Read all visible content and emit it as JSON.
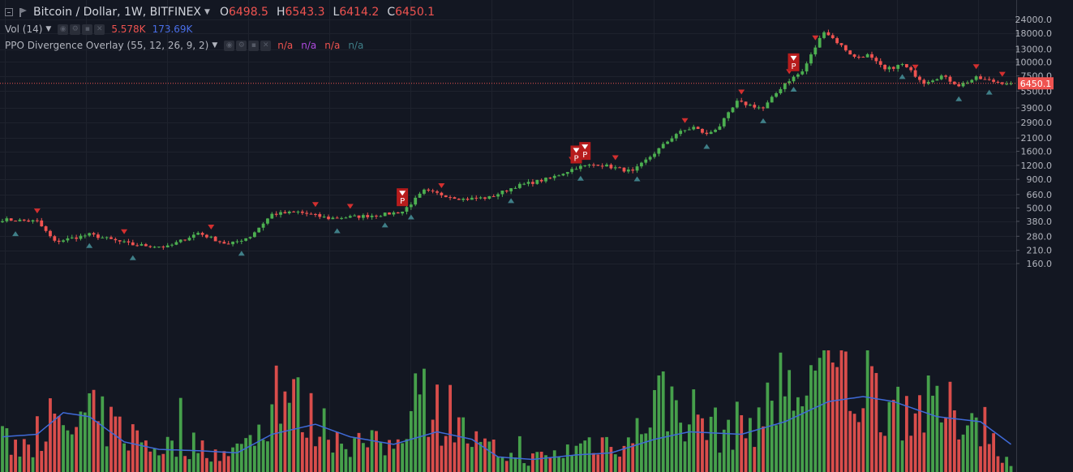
{
  "symbol": {
    "title": "Bitcoin / Dollar, 1W, BITFINEX",
    "open_label": "O",
    "open": "6498.5",
    "high_label": "H",
    "high": "6543.3",
    "low_label": "L",
    "low": "6414.2",
    "close_label": "C",
    "close": "6450.1"
  },
  "volume_legend": {
    "label": "Vol (14)",
    "value": "5.578K",
    "ma_value": "173.69K"
  },
  "ppo_legend": {
    "label": "PPO Divergence Overlay (55, 12, 26, 9, 2)",
    "values": [
      "n/a",
      "n/a",
      "n/a",
      "n/a"
    ]
  },
  "current_price_tag": "6450.1",
  "signal_marker_letter": "P",
  "colors": {
    "bg": "#131722",
    "up": "#4caf50",
    "down": "#ef5350",
    "ma": "#3f6ad8",
    "signal_up": "#3f7f88",
    "signal_down": "#d32f2f"
  },
  "chart_data": {
    "type": "candlestick",
    "y_scale": "log",
    "ylim": [
      146,
      25000
    ],
    "y_ticks": [
      24000,
      18000,
      13000,
      10000,
      7500,
      5500,
      3900,
      2900,
      2100,
      1600,
      1200,
      900,
      660,
      500,
      380,
      280,
      210,
      160
    ],
    "y_tick_labels": [
      "24000.0",
      "18000.0",
      "13000.0",
      "10000.0",
      "7500.0",
      "5500.0",
      "3900.0",
      "2900.0",
      "2100.0",
      "1600.0",
      "1200.0",
      "900.0",
      "660.0",
      "500.0",
      "380.0",
      "280.0",
      "210.0",
      "160.0"
    ],
    "last_close": 6450.1,
    "grid": true,
    "price_waypoints": [
      [
        0,
        395
      ],
      [
        8,
        380
      ],
      [
        12,
        250
      ],
      [
        20,
        290
      ],
      [
        30,
        235
      ],
      [
        38,
        225
      ],
      [
        45,
        300
      ],
      [
        52,
        235
      ],
      [
        57,
        280
      ],
      [
        62,
        440
      ],
      [
        68,
        460
      ],
      [
        75,
        405
      ],
      [
        82,
        420
      ],
      [
        88,
        440
      ],
      [
        92,
        465
      ],
      [
        97,
        710
      ],
      [
        106,
        600
      ],
      [
        112,
        620
      ],
      [
        118,
        780
      ],
      [
        126,
        920
      ],
      [
        132,
        1150
      ],
      [
        137,
        1230
      ],
      [
        145,
        1050
      ],
      [
        150,
        1550
      ],
      [
        155,
        2300
      ],
      [
        159,
        2620
      ],
      [
        162,
        2250
      ],
      [
        165,
        2700
      ],
      [
        169,
        4400
      ],
      [
        175,
        3850
      ],
      [
        180,
        6500
      ],
      [
        184,
        8200
      ],
      [
        189,
        19000
      ],
      [
        196,
        11000
      ],
      [
        199,
        11500
      ],
      [
        203,
        8500
      ],
      [
        207,
        9500
      ],
      [
        212,
        6600
      ],
      [
        216,
        7500
      ],
      [
        220,
        6200
      ],
      [
        224,
        7200
      ],
      [
        228,
        6700
      ],
      [
        232,
        6450
      ]
    ],
    "volume_profile": [
      [
        0,
        60
      ],
      [
        7,
        55
      ],
      [
        10,
        110
      ],
      [
        14,
        70
      ],
      [
        20,
        110
      ],
      [
        28,
        80
      ],
      [
        35,
        50
      ],
      [
        45,
        55
      ],
      [
        52,
        30
      ],
      [
        60,
        90
      ],
      [
        63,
        180
      ],
      [
        70,
        110
      ],
      [
        80,
        60
      ],
      [
        90,
        50
      ],
      [
        95,
        170
      ],
      [
        100,
        120
      ],
      [
        110,
        50
      ],
      [
        120,
        25
      ],
      [
        128,
        35
      ],
      [
        135,
        60
      ],
      [
        145,
        60
      ],
      [
        150,
        150
      ],
      [
        158,
        120
      ],
      [
        165,
        80
      ],
      [
        172,
        100
      ],
      [
        180,
        140
      ],
      [
        188,
        200
      ],
      [
        195,
        170
      ],
      [
        205,
        140
      ],
      [
        215,
        120
      ],
      [
        225,
        110
      ],
      [
        232,
        10
      ]
    ],
    "volume_ma_profile": [
      [
        0,
        70
      ],
      [
        8,
        75
      ],
      [
        14,
        118
      ],
      [
        20,
        110
      ],
      [
        28,
        60
      ],
      [
        36,
        45
      ],
      [
        46,
        42
      ],
      [
        54,
        38
      ],
      [
        62,
        75
      ],
      [
        72,
        95
      ],
      [
        80,
        70
      ],
      [
        90,
        55
      ],
      [
        100,
        80
      ],
      [
        108,
        65
      ],
      [
        114,
        30
      ],
      [
        122,
        25
      ],
      [
        132,
        34
      ],
      [
        140,
        38
      ],
      [
        150,
        65
      ],
      [
        158,
        80
      ],
      [
        170,
        75
      ],
      [
        180,
        100
      ],
      [
        190,
        140
      ],
      [
        198,
        150
      ],
      [
        205,
        140
      ],
      [
        215,
        110
      ],
      [
        225,
        100
      ],
      [
        232,
        55
      ]
    ],
    "signals_down": [
      8,
      28,
      48,
      72,
      80,
      92,
      101,
      131,
      141,
      157,
      170,
      181,
      187,
      210,
      224,
      230
    ],
    "signals_up": [
      3,
      20,
      30,
      55,
      77,
      88,
      94,
      117,
      133,
      146,
      162,
      175,
      182,
      207,
      220,
      227
    ],
    "signal_labels": [
      92,
      132,
      134,
      182
    ]
  }
}
